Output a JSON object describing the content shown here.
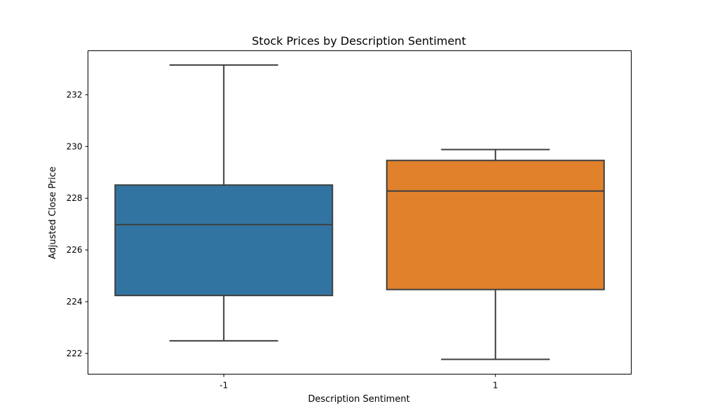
{
  "chart_data": {
    "type": "box",
    "title": "Stock Prices by Description Sentiment",
    "xlabel": "Description Sentiment",
    "ylabel": "Adjusted Close Price",
    "ylim": [
      221.2,
      233.7
    ],
    "yticks": [
      222,
      224,
      226,
      228,
      230,
      232
    ],
    "grid": false,
    "legend": "none",
    "categories": [
      "-1",
      "1"
    ],
    "boxes": [
      {
        "category": "-1",
        "whisker_low": 222.49,
        "q1": 224.24,
        "median": 226.98,
        "q3": 228.51,
        "whisker_high": 233.15,
        "color": "#3274a1"
      },
      {
        "category": "1",
        "whisker_low": 221.77,
        "q1": 224.47,
        "median": 228.28,
        "q3": 229.46,
        "whisker_high": 229.88,
        "color": "#e1812c"
      }
    ],
    "line_color": "#3f3f3f"
  }
}
